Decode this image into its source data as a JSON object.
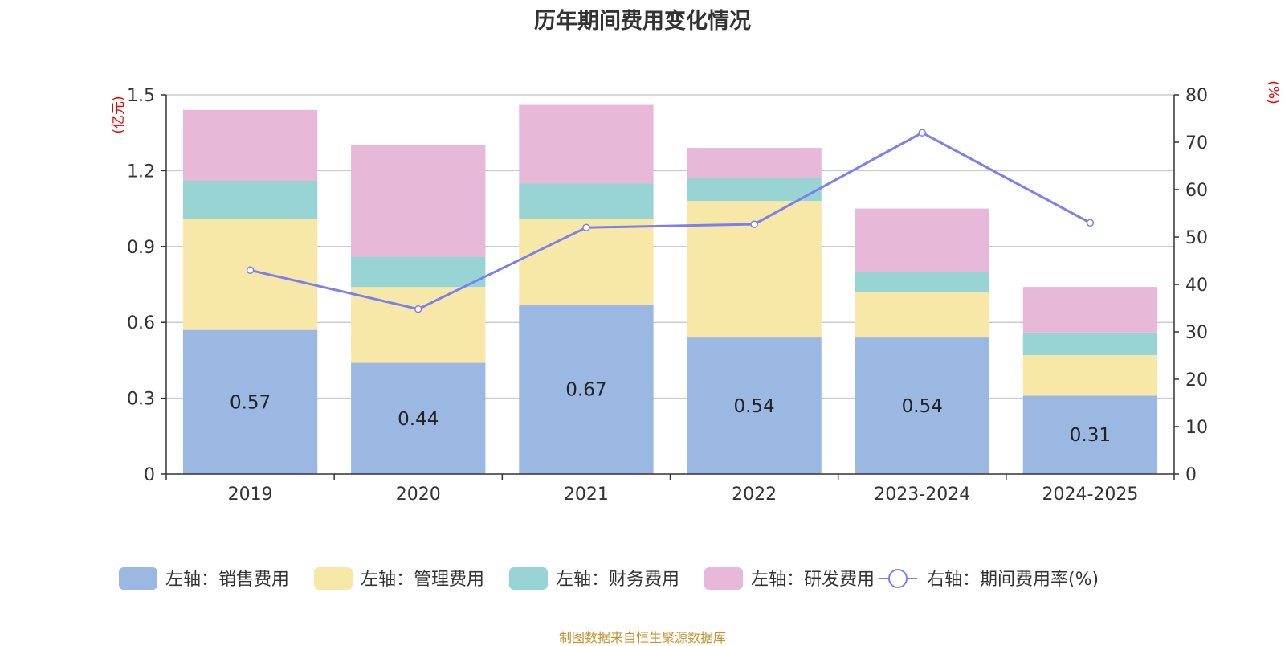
{
  "chart_data": {
    "type": "bar",
    "title": "历年期间费用变化情况",
    "categories": [
      "2019",
      "2020",
      "2021",
      "2022",
      "2023-2024",
      "2024-2025"
    ],
    "y_left": {
      "unit_label": "(亿元)",
      "ylim": [
        0,
        1.5
      ],
      "ticks": [
        "0",
        "0.3",
        "0.6",
        "0.9",
        "1.2",
        "1.5"
      ]
    },
    "y_right": {
      "unit_label": "(%)",
      "ylim": [
        0,
        80
      ],
      "ticks": [
        "0",
        "10",
        "20",
        "30",
        "40",
        "50",
        "60",
        "70",
        "80"
      ]
    },
    "grid": true,
    "legend_position": "bottom",
    "series": [
      {
        "name": "左轴：销售费用",
        "type": "bar",
        "stack": true,
        "axis": "left",
        "color": "#9bb8e2",
        "values": [
          0.57,
          0.44,
          0.67,
          0.54,
          0.54,
          0.31
        ],
        "labels": [
          "0.57",
          "0.44",
          "0.67",
          "0.54",
          "0.54",
          "0.31"
        ]
      },
      {
        "name": "左轴：管理费用",
        "type": "bar",
        "stack": true,
        "axis": "left",
        "color": "#f8e8a8",
        "values": [
          0.44,
          0.3,
          0.34,
          0.54,
          0.18,
          0.16
        ]
      },
      {
        "name": "左轴：财务费用",
        "type": "bar",
        "stack": true,
        "axis": "left",
        "color": "#98d4d4",
        "values": [
          0.15,
          0.12,
          0.14,
          0.09,
          0.08,
          0.09
        ]
      },
      {
        "name": "左轴：研发费用",
        "type": "bar",
        "stack": true,
        "axis": "left",
        "color": "#e8b8d8",
        "values": [
          0.28,
          0.44,
          0.31,
          0.12,
          0.25,
          0.18
        ]
      },
      {
        "name": "右轴：期间费用率(%)",
        "type": "line",
        "axis": "right",
        "color": "#7b7ff0",
        "values": [
          43.0,
          34.8,
          52.0,
          52.7,
          72.0,
          53.0
        ]
      }
    ]
  },
  "footer": {
    "source": "制图数据来自恒生聚源数据库"
  }
}
